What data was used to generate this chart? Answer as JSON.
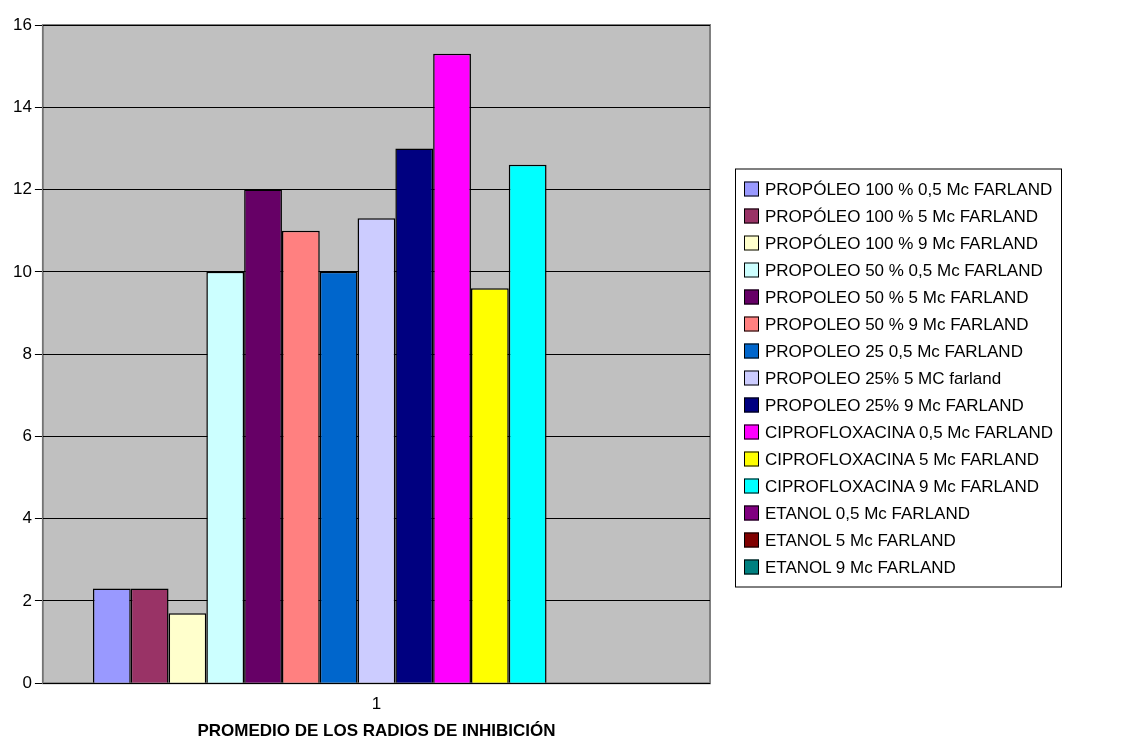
{
  "chart_data": {
    "type": "bar",
    "xlabel": "PROMEDIO DE LOS RADIOS DE INHIBICIÓN",
    "categories": [
      "1"
    ],
    "ylim": [
      0,
      16
    ],
    "yticks": [
      0,
      2,
      4,
      6,
      8,
      10,
      12,
      14,
      16
    ],
    "grid": "y",
    "legend": "right",
    "series": [
      {
        "name": "PROPÓLEO 100 % 0,5 Mc FARLAND",
        "color": "#9999ff",
        "values": [
          2.3
        ]
      },
      {
        "name": "PROPÓLEO 100 % 5 Mc FARLAND",
        "color": "#993366",
        "values": [
          2.3
        ]
      },
      {
        "name": "PROPÓLEO 100 % 9 Mc FARLAND",
        "color": "#ffffcc",
        "values": [
          1.7
        ]
      },
      {
        "name": "PROPOLEO 50 % 0,5 Mc FARLAND",
        "color": "#ccffff",
        "values": [
          10
        ]
      },
      {
        "name": "PROPOLEO 50 % 5 Mc FARLAND",
        "color": "#660066",
        "values": [
          12
        ]
      },
      {
        "name": "PROPOLEO 50 % 9 Mc FARLAND",
        "color": "#ff8080",
        "values": [
          11
        ]
      },
      {
        "name": "PROPOLEO 25  0,5 Mc FARLAND",
        "color": "#0066cc",
        "values": [
          10
        ]
      },
      {
        "name": "PROPOLEO 25% 5 MC farland",
        "color": "#ccccff",
        "values": [
          11.3
        ]
      },
      {
        "name": "PROPOLEO 25% 9 Mc FARLAND",
        "color": "#000080",
        "values": [
          13
        ]
      },
      {
        "name": "CIPROFLOXACINA 0,5 Mc FARLAND",
        "color": "#ff00ff",
        "values": [
          15.3
        ]
      },
      {
        "name": "CIPROFLOXACINA 5 Mc FARLAND",
        "color": "#ffff00",
        "values": [
          9.6
        ]
      },
      {
        "name": "CIPROFLOXACINA 9 Mc FARLAND",
        "color": "#00ffff",
        "values": [
          12.6
        ]
      },
      {
        "name": "ETANOL 0,5 Mc FARLAND",
        "color": "#800080",
        "values": [
          0
        ]
      },
      {
        "name": "ETANOL 5 Mc FARLAND",
        "color": "#800000",
        "values": [
          0
        ]
      },
      {
        "name": "ETANOL 9 Mc FARLAND",
        "color": "#008080",
        "values": [
          0
        ]
      }
    ]
  }
}
